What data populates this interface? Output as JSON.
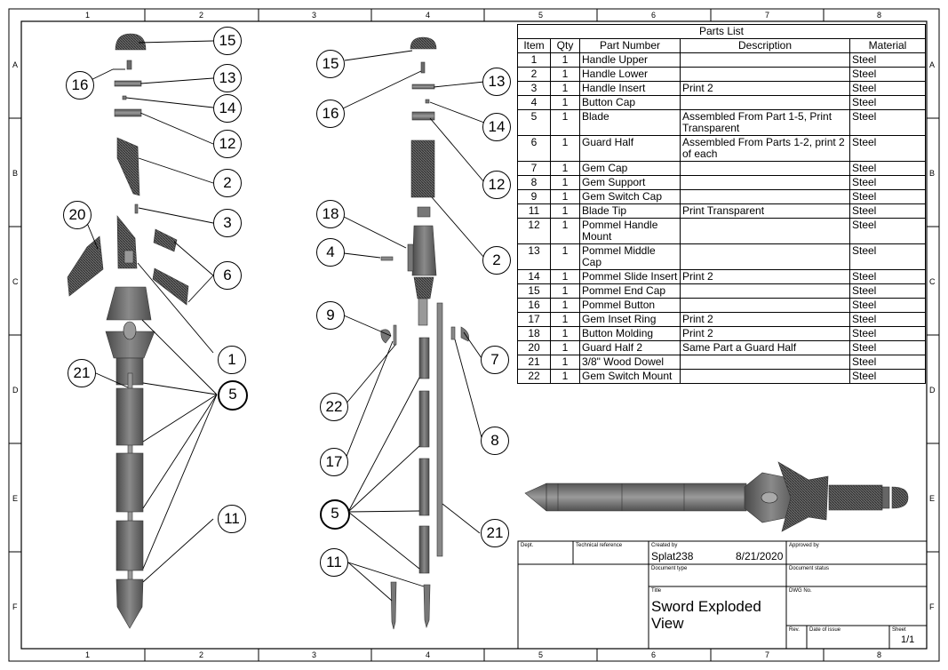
{
  "zones": {
    "columns": [
      "1",
      "2",
      "3",
      "4",
      "5",
      "6",
      "7",
      "8"
    ],
    "rows": [
      "A",
      "B",
      "C",
      "D",
      "E",
      "F"
    ]
  },
  "balloons_left": [
    "15",
    "16",
    "13",
    "14",
    "12",
    "2",
    "3",
    "20",
    "6",
    "1",
    "21",
    "5",
    "11"
  ],
  "balloons_right": [
    "15",
    "13",
    "16",
    "14",
    "12",
    "18",
    "4",
    "2",
    "9",
    "7",
    "22",
    "8",
    "17",
    "5",
    "21",
    "11"
  ],
  "parts_list": {
    "caption": "Parts List",
    "headers": [
      "Item",
      "Qty",
      "Part Number",
      "Description",
      "Material"
    ],
    "rows": [
      [
        "1",
        "1",
        "Handle Upper",
        "",
        "Steel"
      ],
      [
        "2",
        "1",
        "Handle Lower",
        "",
        "Steel"
      ],
      [
        "3",
        "1",
        "Handle Insert",
        "Print 2",
        "Steel"
      ],
      [
        "4",
        "1",
        "Button Cap",
        "",
        "Steel"
      ],
      [
        "5",
        "1",
        "Blade",
        "Assembled From Part 1-5, Print Transparent",
        "Steel"
      ],
      [
        "6",
        "1",
        "Guard Half",
        "Assembled From Parts 1-2, print 2 of each",
        "Steel"
      ],
      [
        "7",
        "1",
        "Gem Cap",
        "",
        "Steel"
      ],
      [
        "8",
        "1",
        "Gem Support",
        "",
        "Steel"
      ],
      [
        "9",
        "1",
        "Gem Switch Cap",
        "",
        "Steel"
      ],
      [
        "11",
        "1",
        "Blade Tip",
        "Print Transparent",
        "Steel"
      ],
      [
        "12",
        "1",
        "Pommel Handle Mount",
        "",
        "Steel"
      ],
      [
        "13",
        "1",
        "Pommel Middle Cap",
        "",
        "Steel"
      ],
      [
        "14",
        "1",
        "Pommel Slide Insert",
        "Print 2",
        "Steel"
      ],
      [
        "15",
        "1",
        "Pommel End Cap",
        "",
        "Steel"
      ],
      [
        "16",
        "1",
        "Pommel Button",
        "",
        "Steel"
      ],
      [
        "17",
        "1",
        "Gem Inset Ring",
        "Print 2",
        "Steel"
      ],
      [
        "18",
        "1",
        "Button Molding",
        "Print 2",
        "Steel"
      ],
      [
        "20",
        "1",
        "Guard Half 2",
        "Same Part a Guard Half",
        "Steel"
      ],
      [
        "21",
        "1",
        "3/8\" Wood Dowel",
        "",
        "Steel"
      ],
      [
        "22",
        "1",
        "Gem Switch Mount",
        "",
        "Steel"
      ]
    ]
  },
  "title_block": {
    "dept_label": "Dept.",
    "techref_label": "Technical reference",
    "created_label": "Created by",
    "created_by": "Splat238",
    "created_date": "8/21/2020",
    "approved_label": "Approved by",
    "doctype_label": "Document type",
    "docstatus_label": "Document status",
    "title_label": "Title",
    "title_line1": "Sword Exploded",
    "title_line2": "View",
    "dwg_label": "DWG No.",
    "rev_label": "Rev.",
    "issue_label": "Date of issue",
    "sheet_label": "Sheet",
    "sheet_value": "1/1"
  }
}
